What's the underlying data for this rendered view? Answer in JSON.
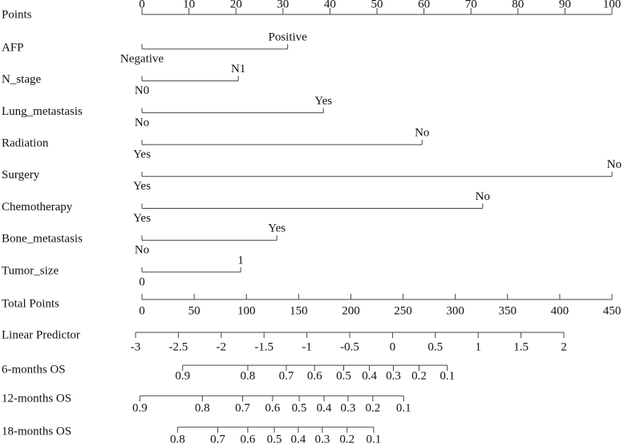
{
  "chart_data": {
    "type": "nomogram",
    "points_axis": {
      "label": "Points",
      "xlim": [
        0,
        100
      ],
      "xticks": [
        0,
        10,
        20,
        30,
        40,
        50,
        60,
        70,
        80,
        90,
        100
      ]
    },
    "variables": [
      {
        "name": "AFP",
        "levels": [
          "Negative",
          "Positive"
        ],
        "points": [
          0,
          31
        ]
      },
      {
        "name": "N_stage",
        "levels": [
          "N0",
          "N1"
        ],
        "points": [
          0,
          20.5
        ]
      },
      {
        "name": "Lung_metastasis",
        "levels": [
          "No",
          "Yes"
        ],
        "points": [
          0,
          38.6
        ]
      },
      {
        "name": "Radiation",
        "levels": [
          "Yes",
          "No"
        ],
        "points": [
          0,
          59.6
        ]
      },
      {
        "name": "Surgery",
        "levels": [
          "Yes",
          "No"
        ],
        "points": [
          0,
          100
        ]
      },
      {
        "name": "Chemotherapy",
        "levels": [
          "Yes",
          "No"
        ],
        "points": [
          0,
          72.5
        ]
      },
      {
        "name": "Bone_metastasis",
        "levels": [
          "No",
          "Yes"
        ],
        "points": [
          0,
          28.7
        ]
      },
      {
        "name": "Tumor_size",
        "levels": [
          "0",
          "1"
        ],
        "points": [
          0,
          21
        ]
      }
    ],
    "total_points_axis": {
      "label": "Total Points",
      "xlim": [
        0,
        450
      ],
      "xticks": [
        0,
        50,
        100,
        150,
        200,
        250,
        300,
        350,
        400,
        450
      ]
    },
    "linear_predictor_axis": {
      "label": "Linear Predictor",
      "xlim": [
        -3,
        2
      ],
      "xticks": [
        -3,
        -2.5,
        -2,
        -1.5,
        -1,
        -0.5,
        0,
        0.5,
        1,
        1.5,
        2
      ]
    },
    "survival_axes": [
      {
        "label": "6-months OS",
        "ticks": [
          0.9,
          0.8,
          0.7,
          0.6,
          0.5,
          0.4,
          0.3,
          0.2,
          0.1
        ],
        "linear_predictor": [
          -2.45,
          -1.69,
          -1.24,
          -0.91,
          -0.57,
          -0.27,
          0.01,
          0.31,
          0.64
        ]
      },
      {
        "label": "12-months OS",
        "ticks": [
          0.9,
          0.8,
          0.7,
          0.6,
          0.5,
          0.4,
          0.3,
          0.2,
          0.1
        ],
        "linear_predictor": [
          -2.95,
          -2.22,
          -1.75,
          -1.4,
          -1.09,
          -0.8,
          -0.52,
          -0.23,
          0.13
        ]
      },
      {
        "label": "18-months OS",
        "ticks": [
          0.8,
          0.7,
          0.6,
          0.5,
          0.4,
          0.3,
          0.2,
          0.1
        ],
        "linear_predictor": [
          -2.51,
          -2.04,
          -1.69,
          -1.38,
          -1.1,
          -0.82,
          -0.53,
          -0.22
        ]
      }
    ]
  }
}
